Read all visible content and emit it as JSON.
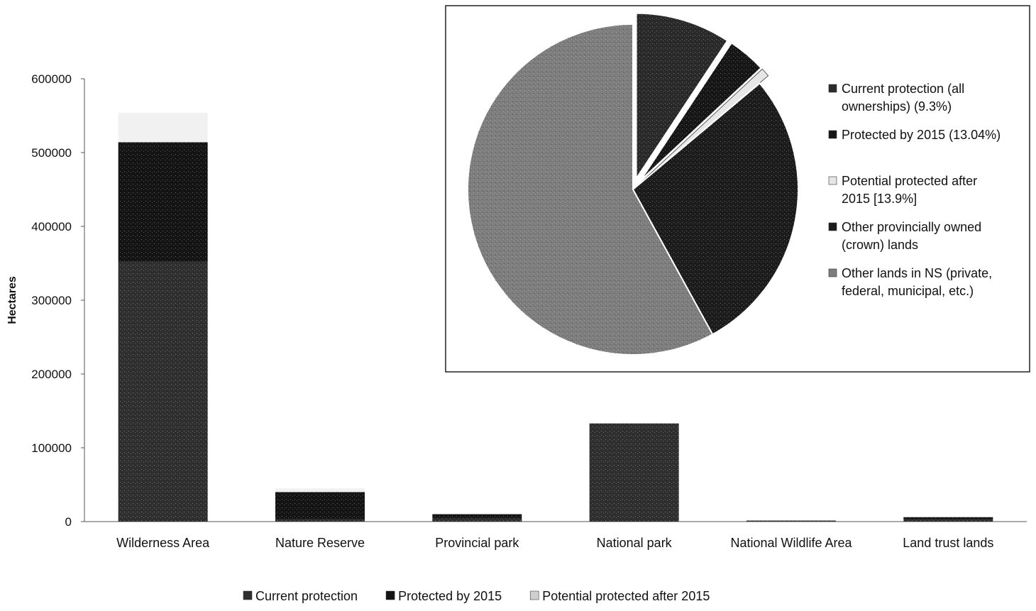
{
  "chart_data": [
    {
      "type": "bar",
      "stacked": true,
      "ylabel": "Hectares",
      "xlabel": "",
      "ylim": [
        0,
        600000
      ],
      "yticks": [
        "0",
        "100000",
        "200000",
        "300000",
        "400000",
        "500000",
        "600000"
      ],
      "categories": [
        "Wilderness Area",
        "Nature Reserve",
        "Provincial park",
        "National park",
        "National Wildlife Area",
        "Land trust lands"
      ],
      "series": [
        {
          "name": "Current protection",
          "color": "#2f2f2f",
          "values": [
            352000,
            3000,
            4000,
            133000,
            1000,
            3000
          ]
        },
        {
          "name": "Protected by 2015",
          "color": "#141414",
          "values": [
            162000,
            37000,
            6000,
            0,
            0,
            3000
          ]
        },
        {
          "name": "Potential protected after 2015",
          "color": "#f1f1f1",
          "values": [
            40000,
            5000,
            0,
            0,
            0,
            0
          ]
        }
      ],
      "legend": "bottom"
    },
    {
      "type": "pie",
      "legend": "right",
      "slices": [
        {
          "label": "Current protection (all ownerships) (9.3%)",
          "lines": [
            "Current protection (all",
            "ownerships) (9.3%)"
          ],
          "value": 9.3,
          "exploded": true,
          "color": "#2a2a2a"
        },
        {
          "label": "Protected by 2015 (13.04%)",
          "lines": [
            "Protected by 2015 (13.04%)"
          ],
          "value": 3.74,
          "exploded": true,
          "color": "#161616"
        },
        {
          "label": "Potential protected after 2015 [13.9%]",
          "lines": [
            "Potential protected after",
            "2015 [13.9%]"
          ],
          "value": 0.86,
          "exploded": true,
          "color": "#e6e6e6"
        },
        {
          "label": "Other provincially owned (crown) lands",
          "lines": [
            "Other provincially owned",
            "(crown) lands"
          ],
          "value": 28.1,
          "exploded": false,
          "color": "#1c1c1c"
        },
        {
          "label": "Other lands in NS (private, federal, municipal, etc.)",
          "lines": [
            "Other lands in NS (private,",
            "federal, municipal, etc.)"
          ],
          "value": 58.0,
          "exploded": false,
          "color": "#7d7d7d"
        }
      ]
    }
  ]
}
